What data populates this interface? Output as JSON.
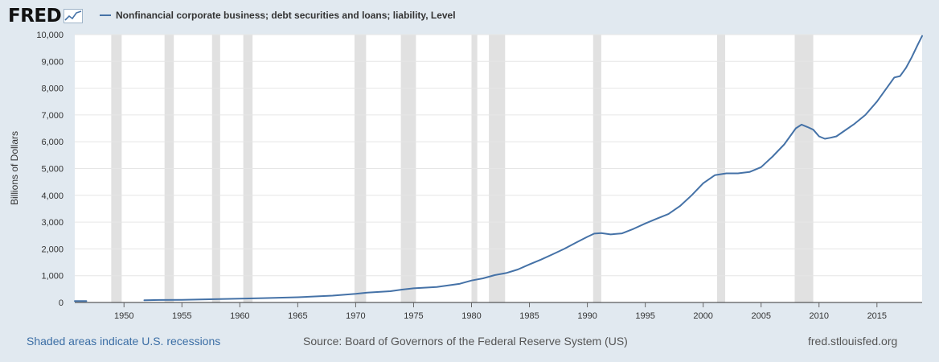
{
  "header": {
    "logo_text": "FRED",
    "series_title": "Nonfinancial corporate business; debt securities and loans; liability, Level",
    "series_color": "#4572a7"
  },
  "footer": {
    "recession_note": "Shaded areas indicate U.S. recessions",
    "source": "Source: Board of Governors of the Federal Reserve System (US)",
    "site": "fred.stlouisfed.org"
  },
  "chart_data": {
    "type": "line",
    "title": "",
    "xlabel": "",
    "ylabel": "Billions of Dollars",
    "xlim": [
      1945.75,
      2018.9
    ],
    "ylim": [
      0,
      10000
    ],
    "grid": true,
    "legend_placement": "top-left",
    "x_ticks": [
      "1950",
      "1955",
      "1960",
      "1965",
      "1970",
      "1975",
      "1980",
      "1985",
      "1990",
      "1995",
      "2000",
      "2005",
      "2010",
      "2015"
    ],
    "y_ticks": [
      "0",
      "1,000",
      "2,000",
      "3,000",
      "4,000",
      "5,000",
      "6,000",
      "7,000",
      "8,000",
      "9,000",
      "10,000"
    ],
    "recession_color": "#e1e1e1",
    "recessions": [
      [
        1948.9,
        1949.8
      ],
      [
        1953.5,
        1954.3
      ],
      [
        1957.6,
        1958.3
      ],
      [
        1960.3,
        1961.1
      ],
      [
        1969.9,
        1970.9
      ],
      [
        1973.9,
        1975.2
      ],
      [
        1980.0,
        1980.5
      ],
      [
        1981.5,
        1982.9
      ],
      [
        1990.5,
        1991.2
      ],
      [
        2001.2,
        2001.9
      ],
      [
        2007.9,
        2009.5
      ]
    ],
    "series": [
      {
        "name": "Nonfinancial corporate business; debt securities and loans; liability, Level",
        "segments": [
          [
            [
              1945.75,
              50
            ],
            [
              1946.75,
              52
            ]
          ],
          [
            [
              1951.75,
              85
            ],
            [
              1953,
              92
            ],
            [
              1955,
              100
            ],
            [
              1957,
              118
            ],
            [
              1960,
              145
            ],
            [
              1962,
              162
            ],
            [
              1965,
              195
            ],
            [
              1968,
              255
            ],
            [
              1970,
              320
            ],
            [
              1971,
              365
            ],
            [
              1973,
              420
            ],
            [
              1974,
              480
            ],
            [
              1975,
              530
            ],
            [
              1977,
              580
            ],
            [
              1979,
              700
            ],
            [
              1980,
              820
            ],
            [
              1981,
              900
            ],
            [
              1982,
              1020
            ],
            [
              1983,
              1100
            ],
            [
              1984,
              1230
            ],
            [
              1985,
              1420
            ],
            [
              1986,
              1600
            ],
            [
              1987,
              1800
            ],
            [
              1988,
              2000
            ],
            [
              1989,
              2230
            ],
            [
              1990,
              2450
            ],
            [
              1990.6,
              2570
            ],
            [
              1991.2,
              2590
            ],
            [
              1992,
              2540
            ],
            [
              1993,
              2580
            ],
            [
              1994,
              2750
            ],
            [
              1995,
              2950
            ],
            [
              1996,
              3130
            ],
            [
              1997,
              3300
            ],
            [
              1998,
              3600
            ],
            [
              1999,
              4000
            ],
            [
              2000,
              4450
            ],
            [
              2001,
              4750
            ],
            [
              2002,
              4820
            ],
            [
              2003,
              4820
            ],
            [
              2004,
              4870
            ],
            [
              2005,
              5050
            ],
            [
              2006,
              5450
            ],
            [
              2007,
              5900
            ],
            [
              2008,
              6500
            ],
            [
              2008.5,
              6640
            ],
            [
              2009,
              6550
            ],
            [
              2009.5,
              6450
            ],
            [
              2010,
              6200
            ],
            [
              2010.5,
              6110
            ],
            [
              2011,
              6150
            ],
            [
              2011.5,
              6200
            ],
            [
              2012,
              6350
            ],
            [
              2013,
              6650
            ],
            [
              2014,
              7000
            ],
            [
              2015,
              7500
            ],
            [
              2016,
              8100
            ],
            [
              2016.5,
              8400
            ],
            [
              2017,
              8450
            ],
            [
              2017.5,
              8750
            ],
            [
              2018,
              9150
            ],
            [
              2018.5,
              9600
            ],
            [
              2018.9,
              9950
            ]
          ]
        ]
      }
    ]
  }
}
